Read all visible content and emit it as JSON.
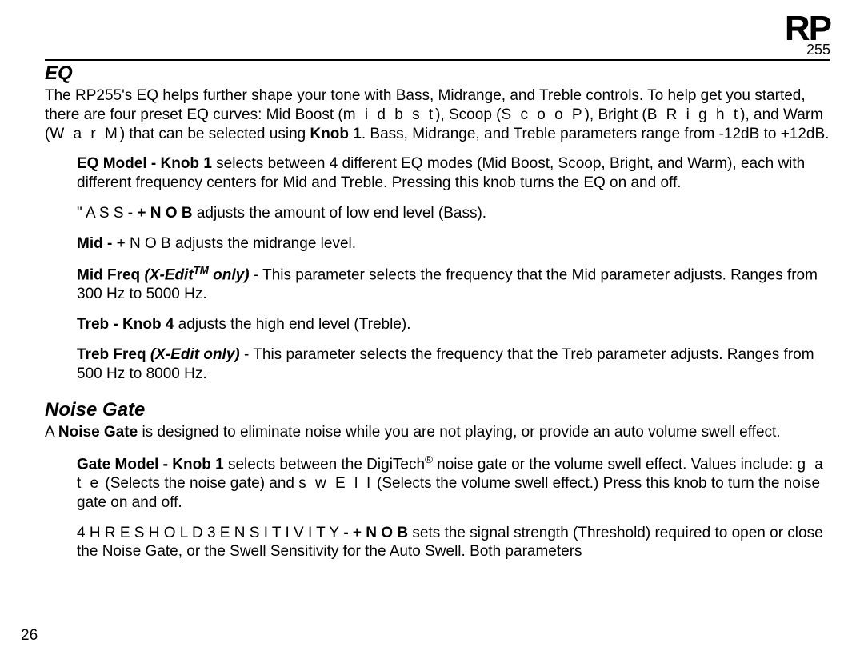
{
  "logo": {
    "main": "RP",
    "sub": "255"
  },
  "page_number": "26",
  "eq": {
    "heading": "EQ",
    "intro_a": "The RP255's EQ helps further shape your tone with Bass, Midrange, and Treble controls.  To help get you started, there are four preset EQ curves: Mid Boost (",
    "intro_midbst": "m i d b s t",
    "intro_b": "), Scoop (",
    "intro_scoop": "S c o o P",
    "intro_c": "), Bright (",
    "intro_bright": "B R i g h t",
    "intro_d": "), and Warm (",
    "intro_warm": "W a r M",
    "intro_e": ") that can be selected using ",
    "intro_knob1": "Knob 1",
    "intro_f": ". Bass, Midrange, and Treble parameters range from -12dB to +12dB.",
    "item1_label": "EQ Model - Knob 1",
    "item1_text": " selects between 4 different EQ modes (Mid Boost, Scoop, Bright, and Warm), each with different frequency centers for Mid and Treble. Pressing this knob turns the EQ on and off.",
    "item2_pre": "\" A S S",
    "item2_label": " - + N O B ",
    "item2_text": " adjusts the amount of low end level (Bass).",
    "item3_label": "Mid - ",
    "item3_mid": "+ N O B ",
    "item3_text": " adjusts the midrange level.",
    "item4_label": "Mid Freq ",
    "item4_xedit": "(X-Edit",
    "item4_tm": "TM",
    "item4_only": " only)",
    "item4_text": " - This parameter selects the frequency that the Mid parameter adjusts. Ranges from 300 Hz to 5000 Hz.",
    "item5_label": "Treb - ",
    "item5_mid": "Knob 4",
    "item5_text": " adjusts the high end level (Treble).",
    "item6_label": "Treb Freq ",
    "item6_xedit": "(X-Edit only)",
    "item6_text": " - This parameter selects the frequency that the Treb parameter adjusts. Ranges from 500 Hz to 8000 Hz."
  },
  "noise_gate": {
    "heading": "Noise Gate",
    "intro_a": "A ",
    "intro_b": "Noise Gate",
    "intro_c": " is designed to eliminate noise while you are not playing, or provide an auto volume swell effect.",
    "item1_label": "Gate Model - Knob 1",
    "item1_text_a": " selects between the DigiTech",
    "item1_reg": "®",
    "item1_text_b": " noise gate or the volume swell effect. Values include: ",
    "item1_gate": "g a t e",
    "item1_text_c": " (Selects the noise gate) and ",
    "item1_swell": "s w E l l",
    "item1_text_d": " (Selects the volume swell effect.) Press this knob to turn the noise gate on and off.",
    "item2_pre": "4 H R E S H O L D   3 E N S I T I V I T Y",
    "item2_label": " - + N O B ",
    "item2_text": " sets the signal strength (Threshold) required to open or close the Noise Gate, or the Swell Sensitivity for the Auto Swell.  Both parameters"
  }
}
